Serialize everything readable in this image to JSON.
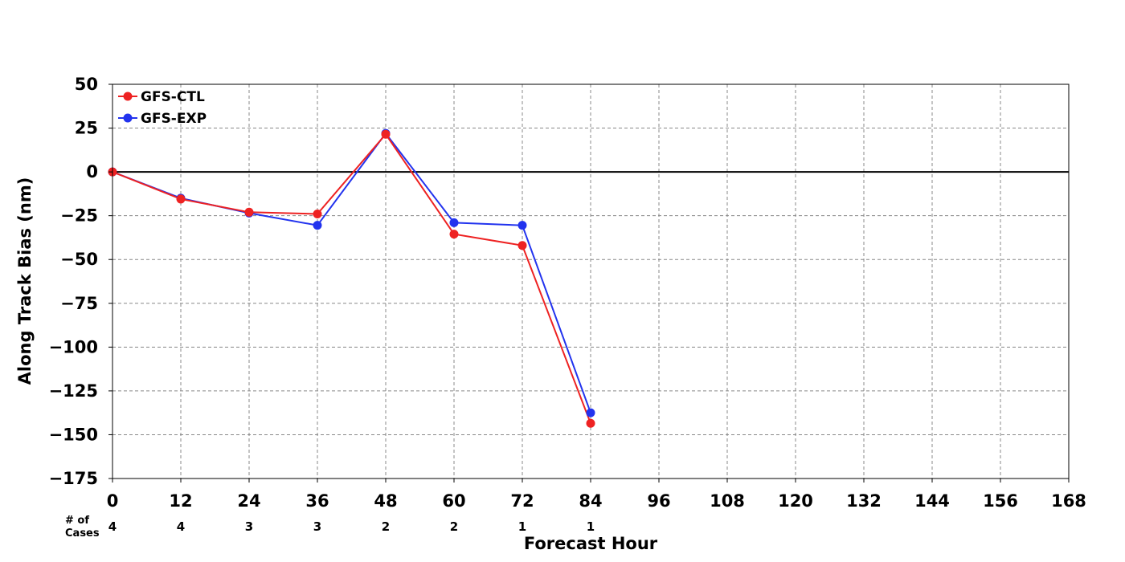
{
  "chart_data": {
    "type": "line",
    "xlabel": "Forecast Hour",
    "ylabel": "Along Track Bias (nm)",
    "xlim": [
      0,
      168
    ],
    "ylim": [
      -175,
      50
    ],
    "xticks": [
      0,
      12,
      24,
      36,
      48,
      60,
      72,
      84,
      96,
      108,
      120,
      132,
      144,
      156,
      168
    ],
    "yticks": [
      50,
      25,
      0,
      -25,
      -50,
      -75,
      -100,
      -125,
      -150,
      -175
    ],
    "grid": true,
    "legend_position": "top-left",
    "zero_line": true,
    "series": [
      {
        "name": "GFS-CTL",
        "color": "#ee2222",
        "x": [
          0,
          12,
          24,
          36,
          48,
          60,
          72,
          84
        ],
        "y": [
          0,
          -15.5,
          -23,
          -24,
          21.5,
          -35.5,
          -42,
          -143.5
        ]
      },
      {
        "name": "GFS-EXP",
        "color": "#2233ee",
        "x": [
          0,
          12,
          24,
          36,
          48,
          60,
          72,
          84
        ],
        "y": [
          0,
          -15,
          -23.5,
          -30.5,
          22,
          -29,
          -30.5,
          -137.5
        ]
      }
    ],
    "cases": {
      "label_line1": "# of",
      "label_line2": "Cases",
      "x": [
        0,
        12,
        24,
        36,
        48,
        60,
        72,
        84
      ],
      "counts": [
        "4",
        "4",
        "3",
        "3",
        "2",
        "2",
        "1",
        "1"
      ]
    }
  }
}
